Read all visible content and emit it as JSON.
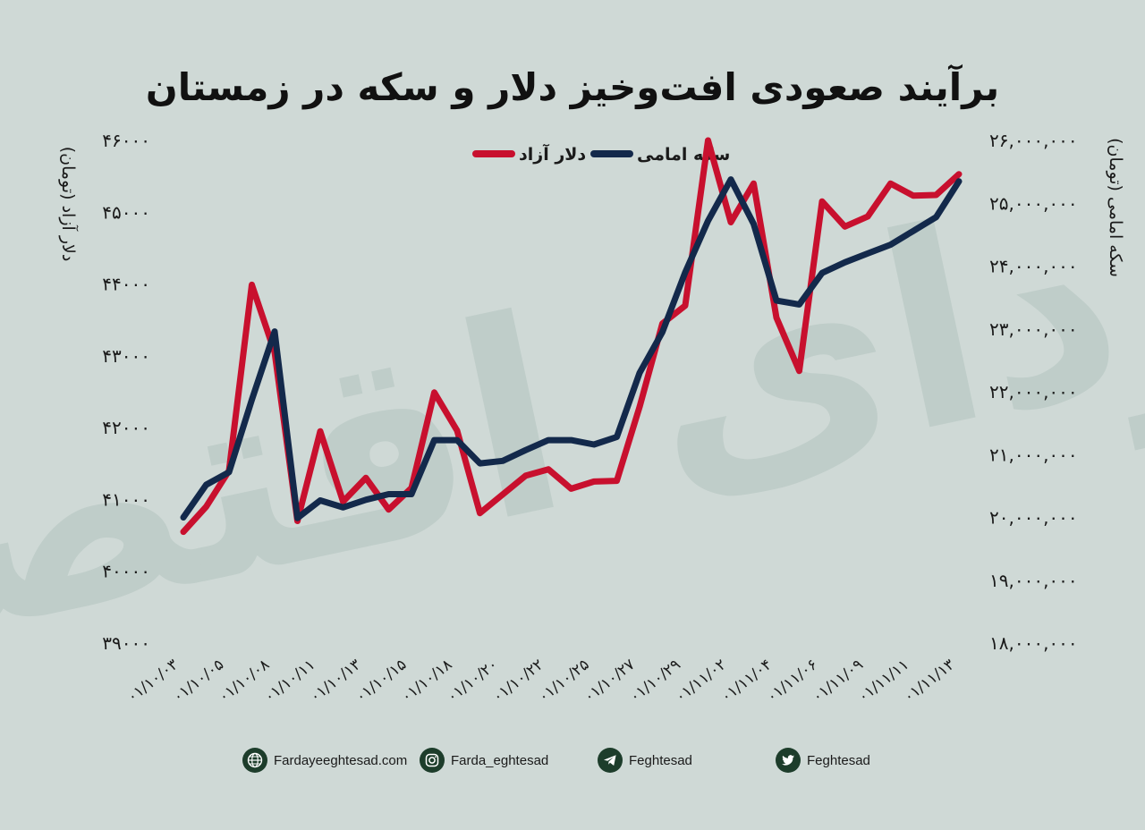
{
  "title": "برآیند صعودی افت‌وخیز دلار و سکه در زمستان",
  "legend": {
    "dollar": "دلار آزاد",
    "coin": "سکه امامی"
  },
  "colors": {
    "background": "#cfd9d6",
    "dollar": "#c8102e",
    "coin": "#13294b",
    "watermark": "#b3c4bf"
  },
  "watermark_text": "فردای اقتصاد",
  "footer": [
    {
      "icon": "globe-icon",
      "text": "Fardayeeghtesad.com"
    },
    {
      "icon": "instagram-icon",
      "text": "Farda_eghtesad"
    },
    {
      "icon": "telegram-icon",
      "text": "Feghtesad"
    },
    {
      "icon": "twitter-icon",
      "text": "Feghtesad"
    }
  ],
  "chart_data": {
    "type": "line",
    "x_tick_labels": [
      "۰۱/۱۰/۰۳",
      "۰۱/۱۰/۰۵",
      "۰۱/۱۰/۰۸",
      "۰۱/۱۰/۱۱",
      "۰۱/۱۰/۱۳",
      "۰۱/۱۰/۱۵",
      "۰۱/۱۰/۱۸",
      "۰۱/۱۰/۲۰",
      "۰۱/۱۰/۲۲",
      "۰۱/۱۰/۲۵",
      "۰۱/۱۰/۲۷",
      "۰۱/۱۰/۲۹",
      "۰۱/۱۱/۰۲",
      "۰۱/۱۱/۰۴",
      "۰۱/۱۱/۰۶",
      "۰۱/۱۱/۰۹",
      "۰۱/۱۱/۱۱",
      "۰۱/۱۱/۱۳"
    ],
    "y_left": {
      "label": "دلار آزاد (تومان)",
      "min": 39000,
      "max": 46000,
      "ticks": [
        39000,
        40000,
        41000,
        42000,
        43000,
        44000,
        45000,
        46000
      ],
      "tick_labels": [
        "۳۹۰۰۰",
        "۴۰۰۰۰",
        "۴۱۰۰۰",
        "۴۲۰۰۰",
        "۴۳۰۰۰",
        "۴۴۰۰۰",
        "۴۵۰۰۰",
        "۴۶۰۰۰"
      ]
    },
    "y_right": {
      "label": "سکه امامی (تومان)",
      "min": 18000000,
      "max": 26000000,
      "ticks": [
        18000000,
        19000000,
        20000000,
        21000000,
        22000000,
        23000000,
        24000000,
        25000000,
        26000000
      ],
      "tick_labels": [
        "۱۸,۰۰۰,۰۰۰",
        "۱۹,۰۰۰,۰۰۰",
        "۲۰,۰۰۰,۰۰۰",
        "۲۱,۰۰۰,۰۰۰",
        "۲۲,۰۰۰,۰۰۰",
        "۲۳,۰۰۰,۰۰۰",
        "۲۴,۰۰۰,۰۰۰",
        "۲۵,۰۰۰,۰۰۰",
        "۲۶,۰۰۰,۰۰۰"
      ]
    },
    "series": [
      {
        "name": "دلار آزاد",
        "axis": "left",
        "color": "#c8102e",
        "values": [
          40550,
          40900,
          41400,
          43990,
          43050,
          40700,
          41950,
          40970,
          41300,
          40860,
          41160,
          42490,
          41960,
          40810,
          41070,
          41330,
          41420,
          41150,
          41250,
          41260,
          42290,
          43450,
          43700,
          46000,
          44860,
          45400,
          43530,
          42790,
          45150,
          44800,
          44940,
          45400,
          45230,
          45240,
          45530
        ]
      },
      {
        "name": "سکه امامی",
        "axis": "right",
        "color": "#13294b",
        "values": [
          20000000,
          20520000,
          20720000,
          21870000,
          22960000,
          19990000,
          20270000,
          20160000,
          20280000,
          20370000,
          20370000,
          21230000,
          21230000,
          20860000,
          20900000,
          21070000,
          21230000,
          21230000,
          21160000,
          21280000,
          22300000,
          22950000,
          23900000,
          24720000,
          25380000,
          24670000,
          23450000,
          23390000,
          23890000,
          24060000,
          24200000,
          24340000,
          24560000,
          24780000,
          25350000
        ]
      }
    ]
  }
}
